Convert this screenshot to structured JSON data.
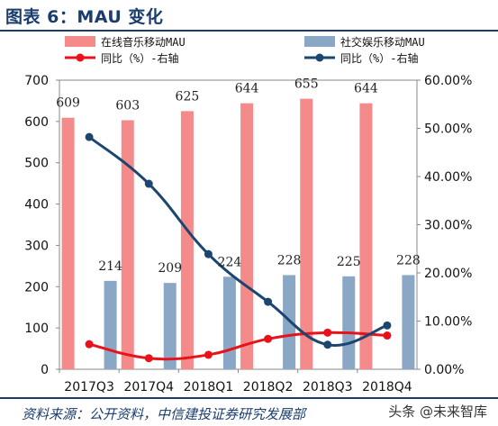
{
  "header": {
    "title": "图表 6：MAU 变化"
  },
  "footer": {
    "source": "资料来源：公开资料，中信建投证券研究发展部",
    "watermark": "头条 @未来智库"
  },
  "colors": {
    "music_bar": "#f48a8a",
    "social_bar": "#8aa8c6",
    "music_line": "#e8121a",
    "social_line": "#1a4670",
    "title": "#1a3d6e"
  },
  "chart_data": {
    "type": "bar",
    "categories": [
      "2017Q3",
      "2017Q4",
      "2018Q1",
      "2018Q2",
      "2018Q3",
      "2018Q4"
    ],
    "series": [
      {
        "name": "在线音乐移动MAU",
        "type": "bar",
        "axis": "left",
        "values": [
          609,
          603,
          625,
          644,
          655,
          644
        ],
        "labels": [
          "609",
          "603",
          "625",
          "644",
          "655",
          "644"
        ]
      },
      {
        "name": "社交娱乐移动MAU",
        "type": "bar",
        "axis": "left",
        "values": [
          214,
          209,
          224,
          228,
          225,
          228
        ],
        "labels": [
          "214",
          "209",
          "224",
          "228",
          "225",
          "228"
        ]
      },
      {
        "name": "同比（%）-右轴",
        "type": "line",
        "axis": "right",
        "values": [
          0.052,
          0.023,
          0.03,
          0.063,
          0.076,
          0.07
        ]
      },
      {
        "name": "同比（%）-右轴",
        "type": "line",
        "axis": "right",
        "values": [
          0.482,
          0.385,
          0.239,
          0.14,
          0.051,
          0.091
        ]
      }
    ],
    "y_left": {
      "ylim": [
        0,
        700
      ],
      "ticks": [
        0,
        100,
        200,
        300,
        400,
        500,
        600,
        700
      ],
      "tick_labels": [
        "0",
        "100",
        "200",
        "300",
        "400",
        "500",
        "600",
        "700"
      ]
    },
    "y_right": {
      "ylim": [
        0,
        0.6
      ],
      "ticks": [
        0,
        0.1,
        0.2,
        0.3,
        0.4,
        0.5,
        0.6
      ],
      "tick_labels": [
        "0.00%",
        "10.00%",
        "20.00%",
        "30.00%",
        "40.00%",
        "50.00%",
        "60.00%"
      ]
    },
    "grid": false,
    "legend_position": "top"
  }
}
